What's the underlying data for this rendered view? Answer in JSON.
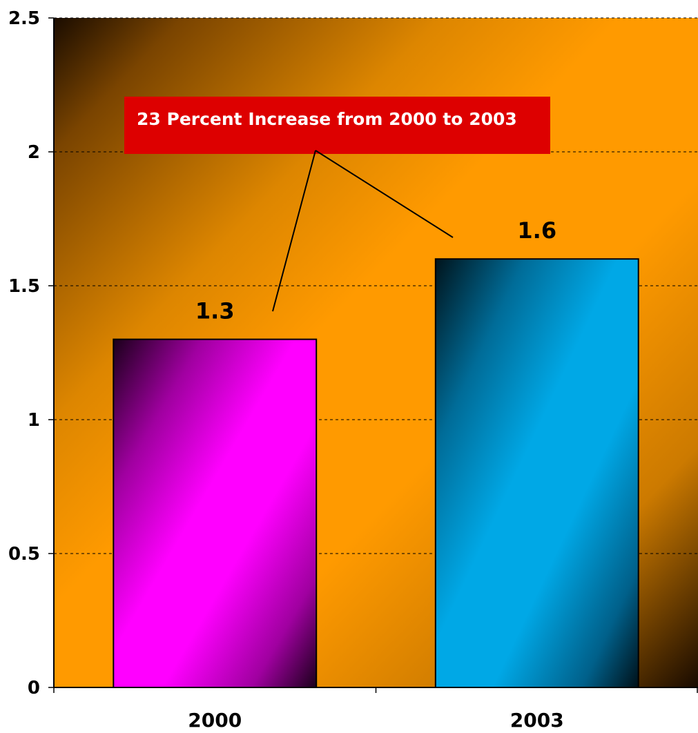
{
  "chart_data": {
    "type": "bar",
    "categories": [
      "2000",
      "2003"
    ],
    "values": [
      1.3,
      1.6
    ],
    "value_labels": [
      "1.3",
      "1.6"
    ],
    "y_ticks": [
      "0",
      "0.5",
      "1",
      "1.5",
      "2",
      "2.5"
    ],
    "ylim": [
      0,
      2.5
    ],
    "grid": "horizontal dashed",
    "title": "",
    "xlabel": "",
    "ylabel": "",
    "annotation": "23 Percent Increase from 2000 to 2003",
    "colors": {
      "bars": [
        "#ff00ff",
        "#00a8e6"
      ],
      "background": "#ff9900",
      "callout": "#dd0000"
    }
  }
}
